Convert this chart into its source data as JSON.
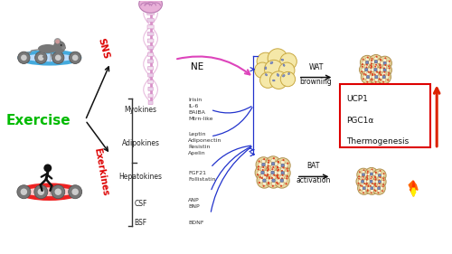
{
  "exercise_label": "Exercise",
  "sns_label": "SNS",
  "exerkines_label": "Exerkines",
  "ne_label": "NE",
  "box_labels": [
    "UCP1",
    "PGC1α",
    "Thermogenesis"
  ],
  "categories": [
    {
      "name": "Myokines",
      "items": [
        "Irisin",
        "IL-6",
        "BAIBA",
        "Mtrn-like"
      ]
    },
    {
      "name": "Adipokines",
      "items": [
        "Leptin",
        "Adiponectin",
        "Resistin",
        "Apelin"
      ]
    },
    {
      "name": "Hepatokines",
      "items": [
        "FGF21",
        "Follistatin"
      ]
    },
    {
      "name": "CSF",
      "items": [
        "ANP",
        "BNP"
      ]
    },
    {
      "name": "BSF",
      "items": [
        "BDNF"
      ]
    }
  ],
  "bg_color": "#ffffff",
  "exercise_color": "#00bb00",
  "sns_color": "#dd0000",
  "exerkines_color": "#dd0000",
  "arrow_black": "#111111",
  "arrow_blue": "#2233cc",
  "arrow_pink": "#dd44bb",
  "arrow_red": "#dd2200",
  "box_border_color": "#dd0000",
  "treadmill_rat_color": "#44aadd",
  "treadmill_run_color": "#ee2222",
  "brain_color": "#e8b0d8",
  "spine_color": "#d890c8",
  "spine_body_color": "#f5e0f0",
  "wat_cell_color": "#f5e8a8",
  "wat_cell_edge": "#c8a840",
  "wat_nucleus_color": "#8899cc",
  "bat_cell_color": "#e8d8a0",
  "bat_cell_edge": "#b09050",
  "bat_nucleus_color": "#7788bb",
  "bat_mito_color": "#dd4422"
}
